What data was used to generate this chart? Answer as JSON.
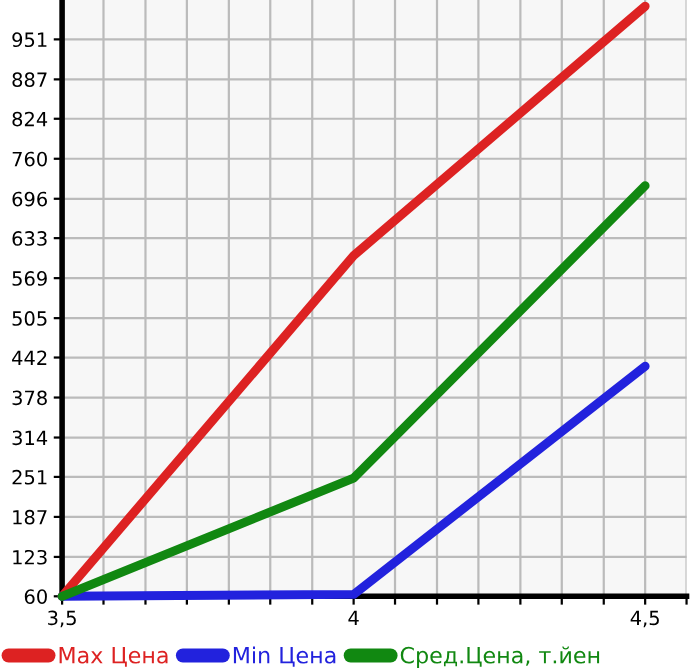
{
  "chart_data": {
    "type": "line",
    "x": [
      3.5,
      4,
      4.5
    ],
    "series": [
      {
        "name": "Max Цена",
        "color": "#dd2222",
        "values": [
          60,
          605,
          1004
        ]
      },
      {
        "name": "Min Цена",
        "color": "#2222dd",
        "values": [
          60,
          63,
          428
        ]
      },
      {
        "name": "Сред.Цена, т.йен",
        "color": "#118811",
        "values": [
          60,
          249,
          717
        ]
      }
    ],
    "xlim": [
      3.5,
      4.571
    ],
    "xticks": [
      {
        "value": 3.5,
        "label": "3,5"
      },
      {
        "value": 3.571,
        "label": null
      },
      {
        "value": 3.643,
        "label": null
      },
      {
        "value": 3.714,
        "label": null
      },
      {
        "value": 3.786,
        "label": null
      },
      {
        "value": 3.857,
        "label": null
      },
      {
        "value": 3.929,
        "label": null
      },
      {
        "value": 4,
        "label": "4"
      },
      {
        "value": 4.071,
        "label": null
      },
      {
        "value": 4.143,
        "label": null
      },
      {
        "value": 4.214,
        "label": null
      },
      {
        "value": 4.286,
        "label": null
      },
      {
        "value": 4.357,
        "label": null
      },
      {
        "value": 4.429,
        "label": null
      },
      {
        "value": 4.5,
        "label": "4,5"
      },
      {
        "value": 4.571,
        "label": null
      }
    ],
    "ylim": [
      60,
      1014
    ],
    "yticks": [
      60,
      123,
      187,
      251,
      314,
      378,
      442,
      505,
      569,
      633,
      696,
      760,
      824,
      887,
      951
    ],
    "grid": true,
    "legend": "bottom",
    "marker": "none",
    "line_style": "solid"
  }
}
